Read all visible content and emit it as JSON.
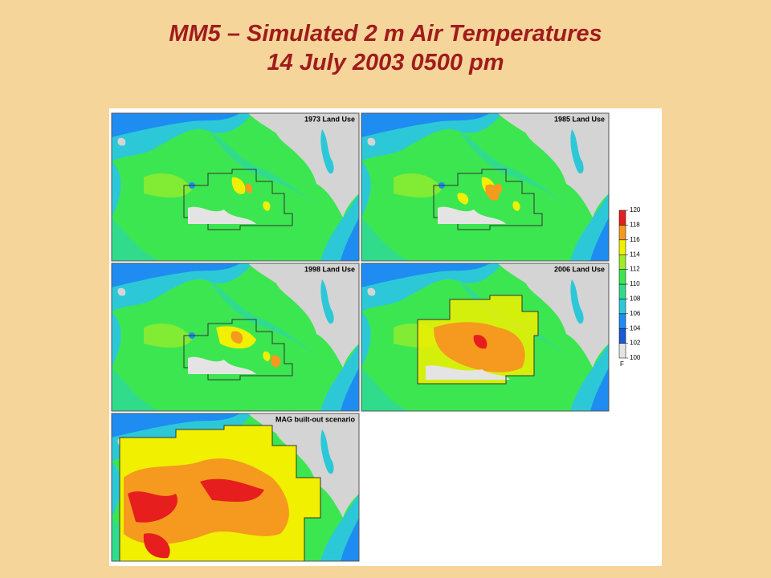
{
  "header": {
    "title_line1": "MM5 – Simulated 2 m Air Temperatures",
    "title_line2": "14 July 2003 0500 pm"
  },
  "panels": [
    {
      "label": "1973 Land Use"
    },
    {
      "label": "1985 Land Use"
    },
    {
      "label": "1998 Land Use"
    },
    {
      "label": "2006 Land Use"
    },
    {
      "label": "MAG built-out scenario"
    }
  ],
  "legend": {
    "ticks": [
      100,
      102,
      104,
      106,
      108,
      110,
      112,
      114,
      116,
      118,
      120
    ],
    "colors": [
      "#e4e4e4",
      "#1a5ad8",
      "#1e8cf0",
      "#2cc8d8",
      "#30dc8c",
      "#3ce650",
      "#a0ec28",
      "#f0f000",
      "#f59a1e",
      "#e61e1e"
    ],
    "unit": "F"
  }
}
